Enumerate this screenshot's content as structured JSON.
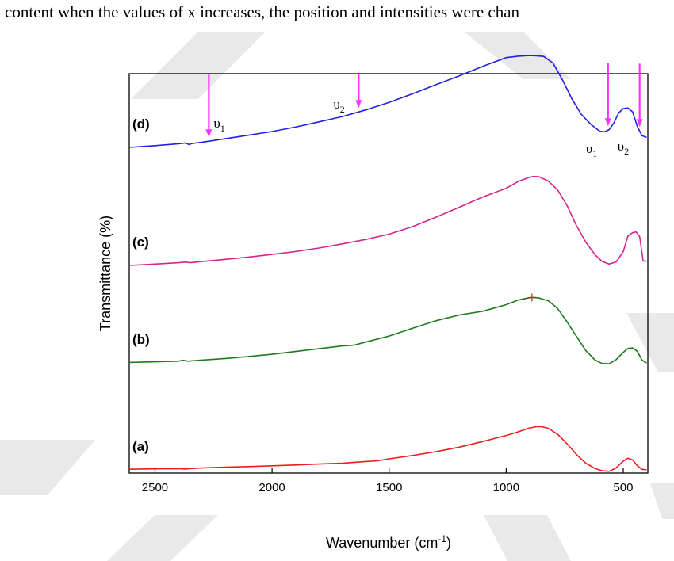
{
  "top_text": "content when the values of x increases, the position and intensities were chan",
  "chart_data": {
    "type": "line",
    "title": "",
    "xlabel_main": "Wavenumber (cm",
    "xlabel_sup": "-1",
    "xlabel_end": ")",
    "ylabel": "Transmittance (%)",
    "xlim": [
      2610,
      395
    ],
    "x_reversed": true,
    "x_ticks": [
      2500,
      2000,
      1500,
      1000,
      500
    ],
    "x_tick_labels": [
      "2500",
      "2000",
      "1500",
      "1000",
      "500"
    ],
    "y_ticks_visible": false,
    "grid": false,
    "legend": "none",
    "series": [
      {
        "name": "(a)",
        "color": "#ee1c1c",
        "offset": 0,
        "x": [
          2610,
          2500,
          2400,
          2370,
          2350,
          2300,
          2200,
          2100,
          2000,
          1900,
          1800,
          1700,
          1600,
          1550,
          1500,
          1400,
          1300,
          1200,
          1100,
          1000,
          950,
          900,
          870,
          850,
          820,
          780,
          740,
          700,
          660,
          620,
          590,
          560,
          530,
          500,
          480,
          460,
          440,
          420,
          400
        ],
        "y": [
          0.6,
          0.9,
          1.1,
          0.8,
          1.2,
          1.7,
          2.4,
          3.0,
          3.7,
          4.4,
          5.3,
          6.0,
          7.6,
          8.2,
          10.0,
          13.0,
          16.4,
          20.5,
          25.6,
          31.0,
          34.2,
          37.8,
          38.9,
          39.0,
          37.5,
          32.0,
          23.5,
          14.0,
          6.0,
          1.2,
          -0.8,
          -1.2,
          1.8,
          8.0,
          10.5,
          9.0,
          3.8,
          0.6,
          0.0
        ]
      },
      {
        "name": "(b)",
        "color": "#1e7a1e",
        "offset": 1,
        "x": [
          2610,
          2500,
          2400,
          2380,
          2360,
          2300,
          2200,
          2100,
          2000,
          1900,
          1800,
          1700,
          1650,
          1600,
          1500,
          1400,
          1300,
          1200,
          1100,
          1000,
          950,
          900,
          880,
          860,
          820,
          780,
          740,
          700,
          660,
          620,
          590,
          560,
          530,
          500,
          480,
          460,
          440,
          420,
          400
        ],
        "y": [
          0.4,
          1.0,
          1.6,
          2.4,
          1.6,
          2.6,
          4.0,
          5.8,
          7.8,
          10.3,
          12.8,
          15.3,
          16.0,
          18.8,
          24.2,
          31.2,
          38.0,
          43.2,
          46.6,
          52.5,
          56.6,
          58.8,
          59.0,
          58.5,
          56.0,
          49.0,
          37.0,
          24.0,
          11.0,
          2.5,
          -0.6,
          -0.8,
          3.0,
          9.5,
          13.0,
          13.5,
          10.5,
          2.5,
          0.0
        ]
      },
      {
        "name": "(c)",
        "color": "#d6248f",
        "offset": 2,
        "x": [
          2610,
          2500,
          2400,
          2370,
          2350,
          2300,
          2200,
          2100,
          2000,
          1900,
          1800,
          1700,
          1600,
          1500,
          1400,
          1300,
          1200,
          1100,
          1000,
          950,
          900,
          880,
          860,
          820,
          780,
          740,
          700,
          660,
          620,
          590,
          560,
          530,
          500,
          480,
          460,
          445,
          430,
          415,
          400
        ],
        "y": [
          0.0,
          1.2,
          2.4,
          3.0,
          2.4,
          3.5,
          5.5,
          7.6,
          9.9,
          12.6,
          15.7,
          19.4,
          23.4,
          28.2,
          35.0,
          43.5,
          52.5,
          61.7,
          69.5,
          75.5,
          79.6,
          80.2,
          80.0,
          76.0,
          68.0,
          54.0,
          36.0,
          21.0,
          9.5,
          3.6,
          1.2,
          3.2,
          12.5,
          26.5,
          29.5,
          30.2,
          26.0,
          4.0,
          3.8
        ]
      },
      {
        "name": "(d)",
        "color": "#2020e8",
        "offset": 3,
        "x": [
          2610,
          2500,
          2400,
          2370,
          2355,
          2340,
          2300,
          2200,
          2100,
          2000,
          1900,
          1800,
          1700,
          1600,
          1500,
          1400,
          1300,
          1200,
          1100,
          1000,
          950,
          900,
          870,
          840,
          800,
          760,
          720,
          680,
          640,
          600,
          580,
          560,
          540,
          520,
          500,
          480,
          460,
          440,
          420,
          400
        ],
        "y": [
          0.0,
          1.6,
          3.3,
          4.0,
          2.6,
          3.6,
          4.6,
          7.8,
          11.0,
          14.3,
          18.3,
          23.0,
          27.8,
          33.8,
          40.6,
          48.3,
          56.5,
          64.5,
          73.0,
          80.9,
          82.2,
          82.8,
          82.6,
          82.0,
          76.0,
          61.0,
          44.0,
          30.0,
          21.0,
          14.5,
          14.0,
          16.0,
          22.0,
          31.0,
          35.0,
          35.5,
          32.0,
          19.0,
          10.5,
          9.0
        ]
      }
    ],
    "curve_labels": [
      {
        "text": "(a)",
        "series": 0,
        "at_x": 2555
      },
      {
        "text": "(b)",
        "series": 1,
        "at_x": 2555
      },
      {
        "text": "(c)",
        "series": 2,
        "at_x": 2555
      },
      {
        "text": "(d)",
        "series": 3,
        "at_x": 2555
      }
    ],
    "marker": {
      "series": 1,
      "x": 890,
      "symbol": "+",
      "color": "#cc2222"
    },
    "annotations": [
      {
        "label": "υ",
        "sub": "1",
        "arrow_x": 2270,
        "series": 3,
        "color": "#ff33ff"
      },
      {
        "label": "υ",
        "sub": "2",
        "arrow_x": 1630,
        "series": 3,
        "color": "#ff33ff"
      },
      {
        "label": "υ",
        "sub": "1",
        "arrow_x": 565,
        "series": 3,
        "color": "#ff33ff"
      },
      {
        "label": "υ",
        "sub": "2",
        "arrow_x": 430,
        "series": 3,
        "color": "#ff33ff"
      }
    ]
  }
}
